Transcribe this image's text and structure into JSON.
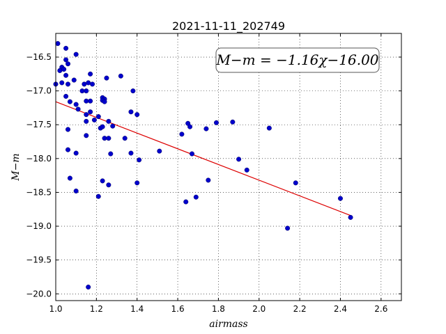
{
  "chart_data": {
    "type": "scatter",
    "title": "2021-11-11_202749",
    "xlabel": "airmass",
    "ylabel": "M−m",
    "xlim": [
      1.0,
      2.7
    ],
    "ylim": [
      -20.1,
      -16.15
    ],
    "y_inverted": true,
    "grid": true,
    "x_ticks": [
      "1.0",
      "1.2",
      "1.4",
      "1.6",
      "1.8",
      "2.0",
      "2.2",
      "2.4",
      "2.6"
    ],
    "y_ticks": [
      "−16.5",
      "−17.0",
      "−17.5",
      "−18.0",
      "−18.5",
      "−19.0",
      "−19.5",
      "−20.0"
    ],
    "annotation": "M−m = −1.16χ−16.00",
    "point_color": "#0000cc",
    "fit_line_color": "#dd0000",
    "fit_line": {
      "x": [
        1.0,
        2.45
      ],
      "y": [
        -17.16,
        -18.842
      ]
    },
    "points": [
      {
        "x": 1.01,
        "y": -16.3
      },
      {
        "x": 1.05,
        "y": -16.37
      },
      {
        "x": 1.1,
        "y": -16.46
      },
      {
        "x": 1.05,
        "y": -16.54
      },
      {
        "x": 1.06,
        "y": -16.6
      },
      {
        "x": 1.03,
        "y": -16.65
      },
      {
        "x": 1.02,
        "y": -16.7
      },
      {
        "x": 1.04,
        "y": -16.68
      },
      {
        "x": 1.05,
        "y": -16.77
      },
      {
        "x": 1.17,
        "y": -16.75
      },
      {
        "x": 1.32,
        "y": -16.78
      },
      {
        "x": 1.25,
        "y": -16.81
      },
      {
        "x": 1.09,
        "y": -16.84
      },
      {
        "x": 1.03,
        "y": -16.88
      },
      {
        "x": 1.0,
        "y": -16.9
      },
      {
        "x": 1.06,
        "y": -16.9
      },
      {
        "x": 1.14,
        "y": -16.9
      },
      {
        "x": 1.16,
        "y": -16.88
      },
      {
        "x": 1.18,
        "y": -16.9
      },
      {
        "x": 1.13,
        "y": -17.0
      },
      {
        "x": 1.15,
        "y": -17.0
      },
      {
        "x": 1.38,
        "y": -17.0
      },
      {
        "x": 1.05,
        "y": -17.08
      },
      {
        "x": 1.23,
        "y": -17.1
      },
      {
        "x": 1.24,
        "y": -17.12
      },
      {
        "x": 1.23,
        "y": -17.14
      },
      {
        "x": 1.07,
        "y": -17.16
      },
      {
        "x": 1.15,
        "y": -17.15
      },
      {
        "x": 1.17,
        "y": -17.15
      },
      {
        "x": 1.24,
        "y": -17.16
      },
      {
        "x": 1.1,
        "y": -17.2
      },
      {
        "x": 1.11,
        "y": -17.27
      },
      {
        "x": 1.37,
        "y": -17.31
      },
      {
        "x": 1.17,
        "y": -17.31
      },
      {
        "x": 1.15,
        "y": -17.35
      },
      {
        "x": 1.4,
        "y": -17.35
      },
      {
        "x": 1.21,
        "y": -17.38
      },
      {
        "x": 1.19,
        "y": -17.43
      },
      {
        "x": 1.15,
        "y": -17.45
      },
      {
        "x": 1.26,
        "y": -17.45
      },
      {
        "x": 1.65,
        "y": -17.48
      },
      {
        "x": 1.79,
        "y": -17.47
      },
      {
        "x": 1.87,
        "y": -17.46
      },
      {
        "x": 1.28,
        "y": -17.52
      },
      {
        "x": 1.66,
        "y": -17.53
      },
      {
        "x": 1.22,
        "y": -17.55
      },
      {
        "x": 1.23,
        "y": -17.53
      },
      {
        "x": 1.74,
        "y": -17.56
      },
      {
        "x": 2.05,
        "y": -17.55
      },
      {
        "x": 1.06,
        "y": -17.57
      },
      {
        "x": 1.62,
        "y": -17.64
      },
      {
        "x": 1.15,
        "y": -17.66
      },
      {
        "x": 1.24,
        "y": -17.7
      },
      {
        "x": 1.26,
        "y": -17.7
      },
      {
        "x": 1.34,
        "y": -17.7
      },
      {
        "x": 1.06,
        "y": -17.87
      },
      {
        "x": 1.51,
        "y": -17.89
      },
      {
        "x": 1.1,
        "y": -17.92
      },
      {
        "x": 1.27,
        "y": -17.93
      },
      {
        "x": 1.37,
        "y": -17.92
      },
      {
        "x": 1.67,
        "y": -17.93
      },
      {
        "x": 1.41,
        "y": -18.02
      },
      {
        "x": 1.9,
        "y": -18.01
      },
      {
        "x": 1.94,
        "y": -18.17
      },
      {
        "x": 1.07,
        "y": -18.29
      },
      {
        "x": 1.75,
        "y": -18.32
      },
      {
        "x": 1.23,
        "y": -18.33
      },
      {
        "x": 1.4,
        "y": -18.36
      },
      {
        "x": 2.18,
        "y": -18.36
      },
      {
        "x": 1.26,
        "y": -18.39
      },
      {
        "x": 1.1,
        "y": -18.48
      },
      {
        "x": 1.21,
        "y": -18.56
      },
      {
        "x": 1.69,
        "y": -18.57
      },
      {
        "x": 2.4,
        "y": -18.59
      },
      {
        "x": 1.64,
        "y": -18.64
      },
      {
        "x": 2.45,
        "y": -18.87
      },
      {
        "x": 2.14,
        "y": -19.03
      },
      {
        "x": 1.16,
        "y": -19.9
      }
    ]
  }
}
